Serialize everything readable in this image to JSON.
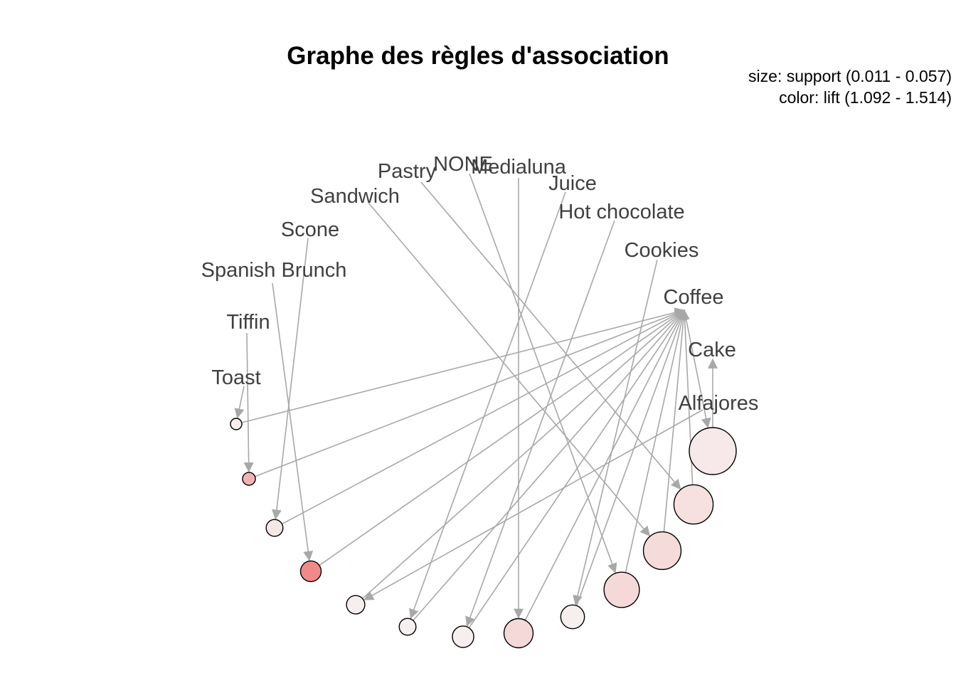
{
  "title": "Graphe des règles d'association",
  "legend": {
    "size": "size: support (0.011 - 0.057)",
    "color": "color: lift (1.092 - 1.514)"
  },
  "colors": {
    "edge": "#a8a8a8",
    "label": "#404040",
    "lift_low": "#f7f0f0",
    "lift_high": "#f08a8a"
  },
  "items": [
    "Pastry",
    "NONE",
    "Medialuna",
    "Juice",
    "Sandwich",
    "Hot chocolate",
    "Scone",
    "Cookies",
    "Spanish Brunch",
    "Coffee",
    "Tiffin",
    "Cake",
    "Toast",
    "Alfajores"
  ],
  "rules": [
    {
      "id": 1,
      "lhs": "Toast",
      "rhs": "Coffee",
      "support": 0.011,
      "lift": 1.1
    },
    {
      "id": 2,
      "lhs": "Tiffin",
      "rhs": "Coffee",
      "support": 0.013,
      "lift": 1.35
    },
    {
      "id": 3,
      "lhs": "Scone",
      "rhs": "Coffee",
      "support": 0.018,
      "lift": 1.13
    },
    {
      "id": 4,
      "lhs": "Spanish Brunch",
      "rhs": "Coffee",
      "support": 0.023,
      "lift": 1.514
    },
    {
      "id": 5,
      "lhs": "Alfajores",
      "rhs": "Coffee",
      "support": 0.02,
      "lift": 1.1
    },
    {
      "id": 6,
      "lhs": "Juice",
      "rhs": "Coffee",
      "support": 0.018,
      "lift": 1.092
    },
    {
      "id": 7,
      "lhs": "Hot chocolate",
      "rhs": "Coffee",
      "support": 0.024,
      "lift": 1.1
    },
    {
      "id": 8,
      "lhs": "Medialuna",
      "rhs": "Coffee",
      "support": 0.034,
      "lift": 1.19
    },
    {
      "id": 9,
      "lhs": "Cookies",
      "rhs": "Coffee",
      "support": 0.027,
      "lift": 1.1
    },
    {
      "id": 10,
      "lhs": "NONE",
      "rhs": "Coffee",
      "support": 0.042,
      "lift": 1.19
    },
    {
      "id": 11,
      "lhs": "Sandwich",
      "rhs": "Coffee",
      "support": 0.045,
      "lift": 1.18
    },
    {
      "id": 12,
      "lhs": "Pastry",
      "rhs": "Coffee",
      "support": 0.047,
      "lift": 1.16
    },
    {
      "id": 13,
      "lhs": "Coffee",
      "rhs": "Cake",
      "support": 0.057,
      "lift": 1.12
    }
  ]
}
